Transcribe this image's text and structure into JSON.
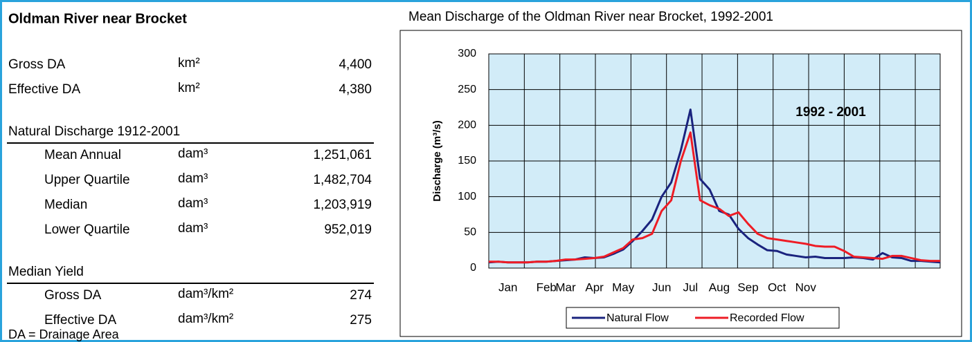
{
  "table": {
    "title": "Oldman River near Brocket",
    "sections": [
      {
        "rows": [
          [
            "Gross DA",
            "km²",
            "4,400"
          ],
          [
            "Effective DA",
            "km²",
            "4,380"
          ]
        ]
      },
      {
        "heading": "Natural Discharge 1912-2001",
        "rows": [
          [
            "Mean Annual",
            "dam³",
            "1,251,061"
          ],
          [
            "Upper Quartile",
            "dam³",
            "1,482,704"
          ],
          [
            "Median",
            "dam³",
            "1,203,919"
          ],
          [
            "Lower Quartile",
            "dam³",
            "952,019"
          ]
        ]
      },
      {
        "heading": "Median Yield",
        "rows": [
          [
            "Gross DA",
            "dam³/km²",
            "274"
          ],
          [
            "Effective DA",
            "dam³/km²",
            "275"
          ]
        ]
      }
    ],
    "footnote": "DA = Drainage Area"
  },
  "chart_data": {
    "type": "line",
    "title": "Mean Discharge of the Oldman River near Brocket, 1992-2001",
    "y_label": "Discharge (m³/s)",
    "annotation": "1992 - 2001",
    "categories": [
      null,
      null,
      "Jan",
      null,
      null,
      null,
      "Feb",
      null,
      "Mar",
      null,
      null,
      "Apr",
      null,
      null,
      "May",
      null,
      null,
      null,
      "Jun",
      null,
      null,
      "Jul",
      null,
      null,
      "Aug",
      null,
      null,
      "Sep",
      null,
      null,
      "Oct",
      null,
      null,
      "Nov",
      null,
      null,
      null,
      null,
      null,
      null,
      null,
      null,
      null,
      null,
      null,
      null,
      null,
      null
    ],
    "series": [
      {
        "name": "Natural Flow",
        "color": "#1a237e",
        "values": [
          8,
          9,
          8,
          8,
          8,
          9,
          9,
          10,
          11,
          12,
          15,
          14,
          15,
          20,
          26,
          38,
          52,
          68,
          100,
          120,
          165,
          222,
          125,
          110,
          80,
          75,
          55,
          42,
          33,
          25,
          24,
          19,
          17,
          15,
          16,
          14,
          14,
          14,
          15,
          14,
          12,
          21,
          15,
          14,
          10,
          10,
          9,
          8
        ]
      },
      {
        "name": "Recorded Flow",
        "color": "#ee1c25",
        "values": [
          9,
          9,
          8,
          8,
          8,
          9,
          9,
          10,
          12,
          12,
          13,
          14,
          16,
          22,
          28,
          40,
          42,
          48,
          80,
          95,
          150,
          190,
          95,
          88,
          83,
          73,
          78,
          62,
          48,
          42,
          40,
          38,
          36,
          34,
          31,
          30,
          30,
          24,
          16,
          15,
          14,
          13,
          17,
          17,
          14,
          11,
          10,
          10
        ]
      }
    ],
    "ylim": [
      0,
      300
    ],
    "yticks": [
      0,
      50,
      100,
      150,
      200,
      250,
      300
    ],
    "grid": true,
    "legend": "bottom"
  }
}
